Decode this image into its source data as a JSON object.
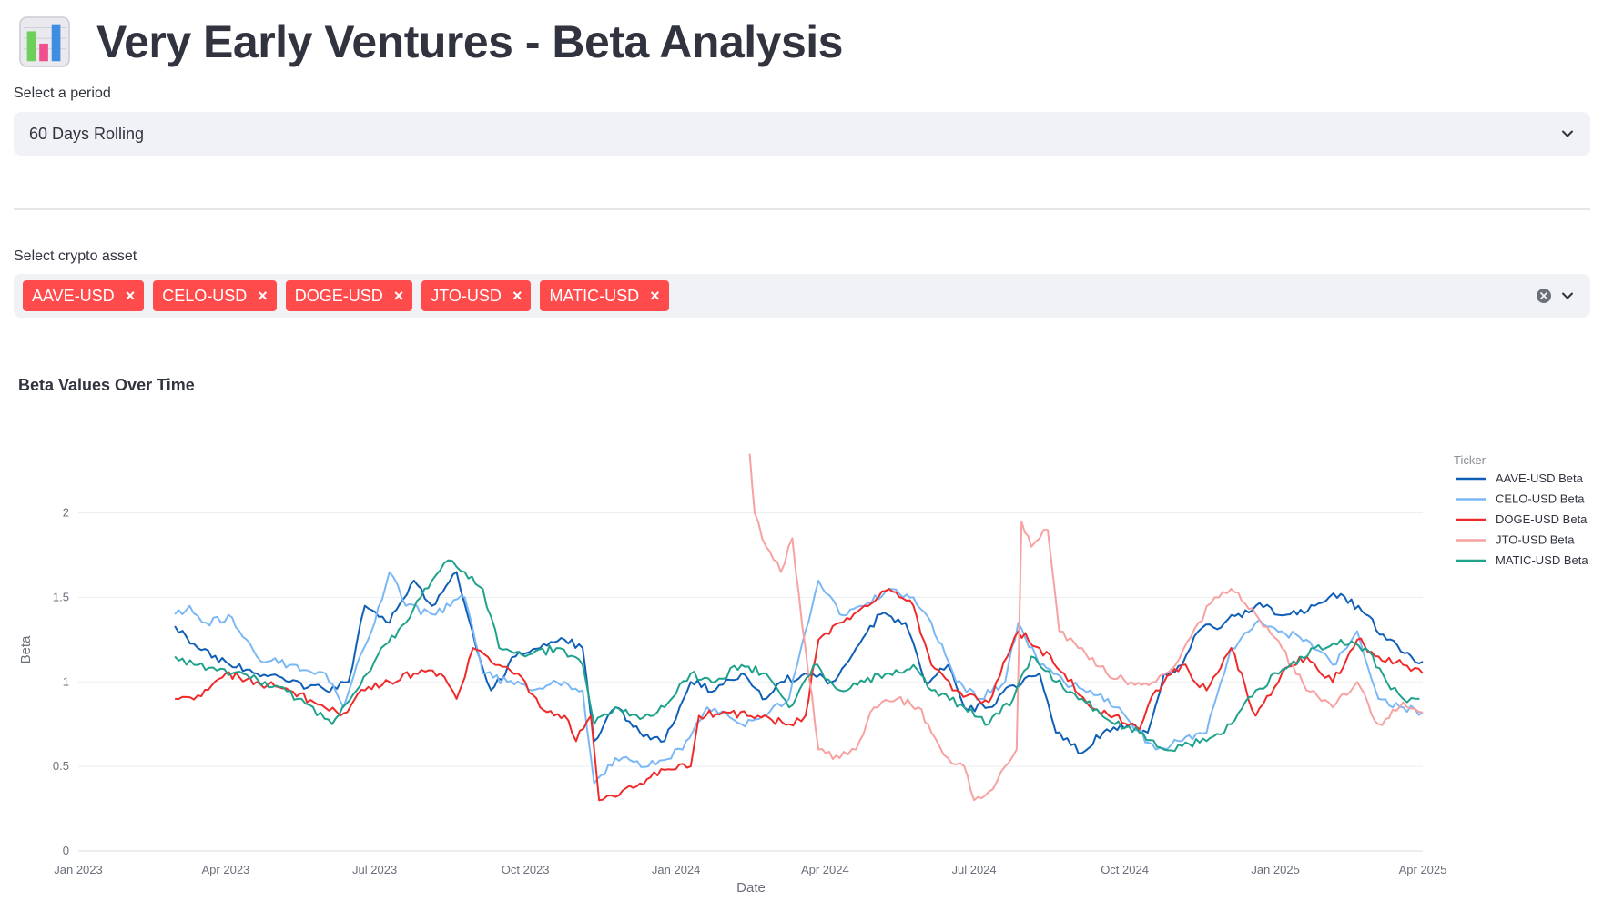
{
  "header": {
    "icon": "bar-chart-icon",
    "title": "Very Early Ventures - Beta Analysis"
  },
  "period": {
    "label": "Select a period",
    "value": "60 Days Rolling"
  },
  "assets": {
    "label": "Select crypto asset",
    "tags": [
      "AAVE-USD",
      "CELO-USD",
      "DOGE-USD",
      "JTO-USD",
      "MATIC-USD"
    ],
    "tag_color": "#ff4b4b"
  },
  "chart": {
    "title": "Beta Values Over Time"
  },
  "chart_data": {
    "type": "line",
    "title": "Beta Values Over Time",
    "xlabel": "Date",
    "ylabel": "Beta",
    "x_ticks": [
      "Jan 2023",
      "Apr 2023",
      "Jul 2023",
      "Oct 2023",
      "Jan 2024",
      "Apr 2024",
      "Jul 2024",
      "Oct 2024",
      "Jan 2025",
      "Apr 2025"
    ],
    "xlim": [
      "2023-01-01",
      "2025-04-01"
    ],
    "y_ticks": [
      0,
      0.5,
      1,
      1.5,
      2
    ],
    "ylim": [
      0,
      2.45
    ],
    "grid": true,
    "legend": {
      "title": "Ticker",
      "placement": "right"
    },
    "series": [
      {
        "name": "AAVE-USD Beta",
        "color": "#0f5fb7",
        "points": [
          [
            "2023-03-01",
            1.33
          ],
          [
            "2023-03-15",
            1.2
          ],
          [
            "2023-04-01",
            1.12
          ],
          [
            "2023-04-20",
            1.05
          ],
          [
            "2023-05-10",
            1.0
          ],
          [
            "2023-06-01",
            0.95
          ],
          [
            "2023-06-15",
            1.0
          ],
          [
            "2023-06-25",
            1.45
          ],
          [
            "2023-07-10",
            1.35
          ],
          [
            "2023-07-25",
            1.6
          ],
          [
            "2023-08-05",
            1.45
          ],
          [
            "2023-08-20",
            1.65
          ],
          [
            "2023-09-01",
            1.2
          ],
          [
            "2023-09-10",
            0.95
          ],
          [
            "2023-09-25",
            1.15
          ],
          [
            "2023-10-10",
            1.2
          ],
          [
            "2023-10-25",
            1.25
          ],
          [
            "2023-11-05",
            1.2
          ],
          [
            "2023-11-12",
            0.65
          ],
          [
            "2023-11-25",
            0.85
          ],
          [
            "2023-12-10",
            0.7
          ],
          [
            "2023-12-25",
            0.65
          ],
          [
            "2024-01-10",
            1.0
          ],
          [
            "2024-01-25",
            0.95
          ],
          [
            "2024-02-10",
            1.05
          ],
          [
            "2024-02-25",
            0.9
          ],
          [
            "2024-03-05",
            1.0
          ],
          [
            "2024-03-20",
            1.05
          ],
          [
            "2024-04-05",
            1.0
          ],
          [
            "2024-04-20",
            1.2
          ],
          [
            "2024-05-05",
            1.4
          ],
          [
            "2024-05-20",
            1.35
          ],
          [
            "2024-06-01",
            1.0
          ],
          [
            "2024-06-15",
            1.1
          ],
          [
            "2024-06-25",
            0.85
          ],
          [
            "2024-07-10",
            0.85
          ],
          [
            "2024-07-25",
            0.98
          ],
          [
            "2024-08-10",
            1.05
          ],
          [
            "2024-08-20",
            0.7
          ],
          [
            "2024-09-05",
            0.58
          ],
          [
            "2024-09-20",
            0.72
          ],
          [
            "2024-10-05",
            0.75
          ],
          [
            "2024-10-15",
            0.7
          ],
          [
            "2024-10-25",
            1.05
          ],
          [
            "2024-11-05",
            1.1
          ],
          [
            "2024-11-15",
            1.3
          ],
          [
            "2024-12-01",
            1.35
          ],
          [
            "2024-12-20",
            1.45
          ],
          [
            "2025-01-10",
            1.4
          ],
          [
            "2025-01-25",
            1.45
          ],
          [
            "2025-02-10",
            1.52
          ],
          [
            "2025-02-25",
            1.4
          ],
          [
            "2025-03-10",
            1.25
          ],
          [
            "2025-03-25",
            1.15
          ],
          [
            "2025-04-01",
            1.12
          ]
        ]
      },
      {
        "name": "CELO-USD Beta",
        "color": "#7ab8f5",
        "points": [
          [
            "2023-03-01",
            1.4
          ],
          [
            "2023-03-10",
            1.45
          ],
          [
            "2023-03-20",
            1.35
          ],
          [
            "2023-04-05",
            1.38
          ],
          [
            "2023-04-20",
            1.15
          ],
          [
            "2023-05-10",
            1.1
          ],
          [
            "2023-06-01",
            1.05
          ],
          [
            "2023-06-12",
            0.85
          ],
          [
            "2023-06-20",
            1.1
          ],
          [
            "2023-07-01",
            1.35
          ],
          [
            "2023-07-10",
            1.65
          ],
          [
            "2023-07-20",
            1.45
          ],
          [
            "2023-08-05",
            1.4
          ],
          [
            "2023-08-25",
            1.5
          ],
          [
            "2023-09-05",
            1.05
          ],
          [
            "2023-09-20",
            1.0
          ],
          [
            "2023-10-05",
            0.95
          ],
          [
            "2023-10-25",
            1.0
          ],
          [
            "2023-11-05",
            0.95
          ],
          [
            "2023-11-12",
            0.4
          ],
          [
            "2023-11-25",
            0.55
          ],
          [
            "2023-12-15",
            0.5
          ],
          [
            "2024-01-05",
            0.6
          ],
          [
            "2024-01-20",
            0.85
          ],
          [
            "2024-02-10",
            0.75
          ],
          [
            "2024-02-25",
            0.8
          ],
          [
            "2024-03-10",
            0.9
          ],
          [
            "2024-03-20",
            1.3
          ],
          [
            "2024-03-28",
            1.6
          ],
          [
            "2024-04-10",
            1.4
          ],
          [
            "2024-04-25",
            1.45
          ],
          [
            "2024-05-10",
            1.55
          ],
          [
            "2024-05-25",
            1.5
          ],
          [
            "2024-06-05",
            1.35
          ],
          [
            "2024-06-20",
            1.0
          ],
          [
            "2024-07-05",
            0.9
          ],
          [
            "2024-07-20",
            1.0
          ],
          [
            "2024-07-28",
            1.35
          ],
          [
            "2024-08-10",
            1.1
          ],
          [
            "2024-08-25",
            1.0
          ],
          [
            "2024-09-10",
            0.95
          ],
          [
            "2024-09-25",
            0.85
          ],
          [
            "2024-10-05",
            0.75
          ],
          [
            "2024-10-20",
            0.6
          ],
          [
            "2024-11-05",
            0.65
          ],
          [
            "2024-11-20",
            0.7
          ],
          [
            "2024-12-05",
            1.2
          ],
          [
            "2024-12-20",
            1.35
          ],
          [
            "2025-01-05",
            1.3
          ],
          [
            "2025-01-20",
            1.25
          ],
          [
            "2025-02-05",
            1.1
          ],
          [
            "2025-02-20",
            1.3
          ],
          [
            "2025-03-05",
            0.9
          ],
          [
            "2025-03-20",
            0.85
          ],
          [
            "2025-04-01",
            0.82
          ]
        ]
      },
      {
        "name": "DOGE-USD Beta",
        "color": "#f02a2a",
        "points": [
          [
            "2023-03-01",
            0.9
          ],
          [
            "2023-03-15",
            0.92
          ],
          [
            "2023-04-01",
            1.05
          ],
          [
            "2023-04-20",
            1.0
          ],
          [
            "2023-05-10",
            0.95
          ],
          [
            "2023-05-25",
            0.88
          ],
          [
            "2023-06-10",
            0.8
          ],
          [
            "2023-06-25",
            0.95
          ],
          [
            "2023-07-10",
            1.0
          ],
          [
            "2023-07-25",
            1.05
          ],
          [
            "2023-08-10",
            1.05
          ],
          [
            "2023-08-20",
            0.9
          ],
          [
            "2023-08-30",
            1.2
          ],
          [
            "2023-09-15",
            1.1
          ],
          [
            "2023-10-01",
            1.0
          ],
          [
            "2023-10-10",
            0.85
          ],
          [
            "2023-10-25",
            0.8
          ],
          [
            "2023-11-01",
            0.65
          ],
          [
            "2023-11-10",
            0.8
          ],
          [
            "2023-11-15",
            0.3
          ],
          [
            "2023-11-25",
            0.32
          ],
          [
            "2023-12-10",
            0.4
          ],
          [
            "2023-12-25",
            0.48
          ],
          [
            "2024-01-10",
            0.5
          ],
          [
            "2024-01-15",
            0.8
          ],
          [
            "2024-02-01",
            0.82
          ],
          [
            "2024-02-20",
            0.8
          ],
          [
            "2024-03-10",
            0.75
          ],
          [
            "2024-03-20",
            0.8
          ],
          [
            "2024-03-28",
            1.25
          ],
          [
            "2024-04-10",
            1.35
          ],
          [
            "2024-04-25",
            1.45
          ],
          [
            "2024-05-10",
            1.55
          ],
          [
            "2024-05-25",
            1.45
          ],
          [
            "2024-06-05",
            1.1
          ],
          [
            "2024-06-20",
            0.95
          ],
          [
            "2024-07-10",
            0.88
          ],
          [
            "2024-07-28",
            1.3
          ],
          [
            "2024-08-10",
            1.2
          ],
          [
            "2024-08-25",
            1.05
          ],
          [
            "2024-09-10",
            0.85
          ],
          [
            "2024-09-25",
            0.8
          ],
          [
            "2024-10-10",
            0.72
          ],
          [
            "2024-10-20",
            0.95
          ],
          [
            "2024-11-05",
            1.1
          ],
          [
            "2024-11-20",
            0.95
          ],
          [
            "2024-12-05",
            1.2
          ],
          [
            "2024-12-20",
            0.8
          ],
          [
            "2025-01-05",
            1.05
          ],
          [
            "2025-01-20",
            1.15
          ],
          [
            "2025-02-05",
            1.0
          ],
          [
            "2025-02-20",
            1.25
          ],
          [
            "2025-03-05",
            1.15
          ],
          [
            "2025-03-20",
            1.1
          ],
          [
            "2025-04-01",
            1.05
          ]
        ]
      },
      {
        "name": "JTO-USD Beta",
        "color": "#f7a1a1",
        "points": [
          [
            "2024-02-15",
            2.35
          ],
          [
            "2024-02-18",
            2.0
          ],
          [
            "2024-02-25",
            1.8
          ],
          [
            "2024-03-05",
            1.65
          ],
          [
            "2024-03-12",
            1.85
          ],
          [
            "2024-03-20",
            1.2
          ],
          [
            "2024-03-28",
            0.6
          ],
          [
            "2024-04-10",
            0.55
          ],
          [
            "2024-04-20",
            0.6
          ],
          [
            "2024-05-01",
            0.85
          ],
          [
            "2024-05-15",
            0.9
          ],
          [
            "2024-05-28",
            0.85
          ],
          [
            "2024-06-05",
            0.7
          ],
          [
            "2024-06-15",
            0.55
          ],
          [
            "2024-06-25",
            0.5
          ],
          [
            "2024-07-01",
            0.3
          ],
          [
            "2024-07-10",
            0.35
          ],
          [
            "2024-07-20",
            0.5
          ],
          [
            "2024-07-27",
            0.6
          ],
          [
            "2024-07-30",
            1.95
          ],
          [
            "2024-08-05",
            1.8
          ],
          [
            "2024-08-15",
            1.9
          ],
          [
            "2024-08-22",
            1.3
          ],
          [
            "2024-09-05",
            1.2
          ],
          [
            "2024-09-20",
            1.05
          ],
          [
            "2024-10-05",
            1.0
          ],
          [
            "2024-10-20",
            1.0
          ],
          [
            "2024-11-01",
            1.1
          ],
          [
            "2024-11-15",
            1.35
          ],
          [
            "2024-11-25",
            1.5
          ],
          [
            "2024-12-05",
            1.55
          ],
          [
            "2024-12-20",
            1.4
          ],
          [
            "2025-01-05",
            1.2
          ],
          [
            "2025-01-20",
            0.95
          ],
          [
            "2025-02-05",
            0.85
          ],
          [
            "2025-02-20",
            1.0
          ],
          [
            "2025-03-05",
            0.75
          ],
          [
            "2025-03-20",
            0.88
          ],
          [
            "2025-04-01",
            0.82
          ]
        ]
      },
      {
        "name": "MATIC-USD Beta",
        "color": "#1fa28b",
        "points": [
          [
            "2023-03-01",
            1.15
          ],
          [
            "2023-03-15",
            1.1
          ],
          [
            "2023-04-05",
            1.05
          ],
          [
            "2023-04-25",
            1.0
          ],
          [
            "2023-05-15",
            0.9
          ],
          [
            "2023-06-05",
            0.75
          ],
          [
            "2023-06-20",
            0.95
          ],
          [
            "2023-07-05",
            1.2
          ],
          [
            "2023-07-20",
            1.35
          ],
          [
            "2023-08-05",
            1.6
          ],
          [
            "2023-08-15",
            1.72
          ],
          [
            "2023-08-25",
            1.65
          ],
          [
            "2023-09-05",
            1.55
          ],
          [
            "2023-09-15",
            1.2
          ],
          [
            "2023-10-01",
            1.15
          ],
          [
            "2023-10-20",
            1.2
          ],
          [
            "2023-11-05",
            1.1
          ],
          [
            "2023-11-12",
            0.75
          ],
          [
            "2023-11-25",
            0.85
          ],
          [
            "2023-12-10",
            0.78
          ],
          [
            "2023-12-25",
            0.85
          ],
          [
            "2024-01-10",
            1.05
          ],
          [
            "2024-01-25",
            1.0
          ],
          [
            "2024-02-10",
            1.1
          ],
          [
            "2024-02-25",
            1.05
          ],
          [
            "2024-03-10",
            0.85
          ],
          [
            "2024-03-25",
            1.1
          ],
          [
            "2024-04-10",
            0.95
          ],
          [
            "2024-04-25",
            1.0
          ],
          [
            "2024-05-10",
            1.05
          ],
          [
            "2024-05-25",
            1.1
          ],
          [
            "2024-06-05",
            0.95
          ],
          [
            "2024-06-25",
            0.85
          ],
          [
            "2024-07-10",
            0.75
          ],
          [
            "2024-07-25",
            0.9
          ],
          [
            "2024-08-05",
            1.15
          ],
          [
            "2024-08-20",
            1.0
          ],
          [
            "2024-09-05",
            0.9
          ],
          [
            "2024-09-25",
            0.75
          ],
          [
            "2024-10-10",
            0.7
          ],
          [
            "2024-10-25",
            0.6
          ],
          [
            "2024-11-05",
            0.62
          ],
          [
            "2024-11-20",
            0.65
          ],
          [
            "2024-12-05",
            0.75
          ],
          [
            "2024-12-20",
            0.95
          ],
          [
            "2025-01-10",
            1.1
          ],
          [
            "2025-01-25",
            1.2
          ],
          [
            "2025-02-10",
            1.25
          ],
          [
            "2025-02-25",
            1.2
          ],
          [
            "2025-03-10",
            1.0
          ],
          [
            "2025-03-20",
            0.9
          ],
          [
            "2025-03-30",
            0.9
          ]
        ]
      }
    ]
  }
}
